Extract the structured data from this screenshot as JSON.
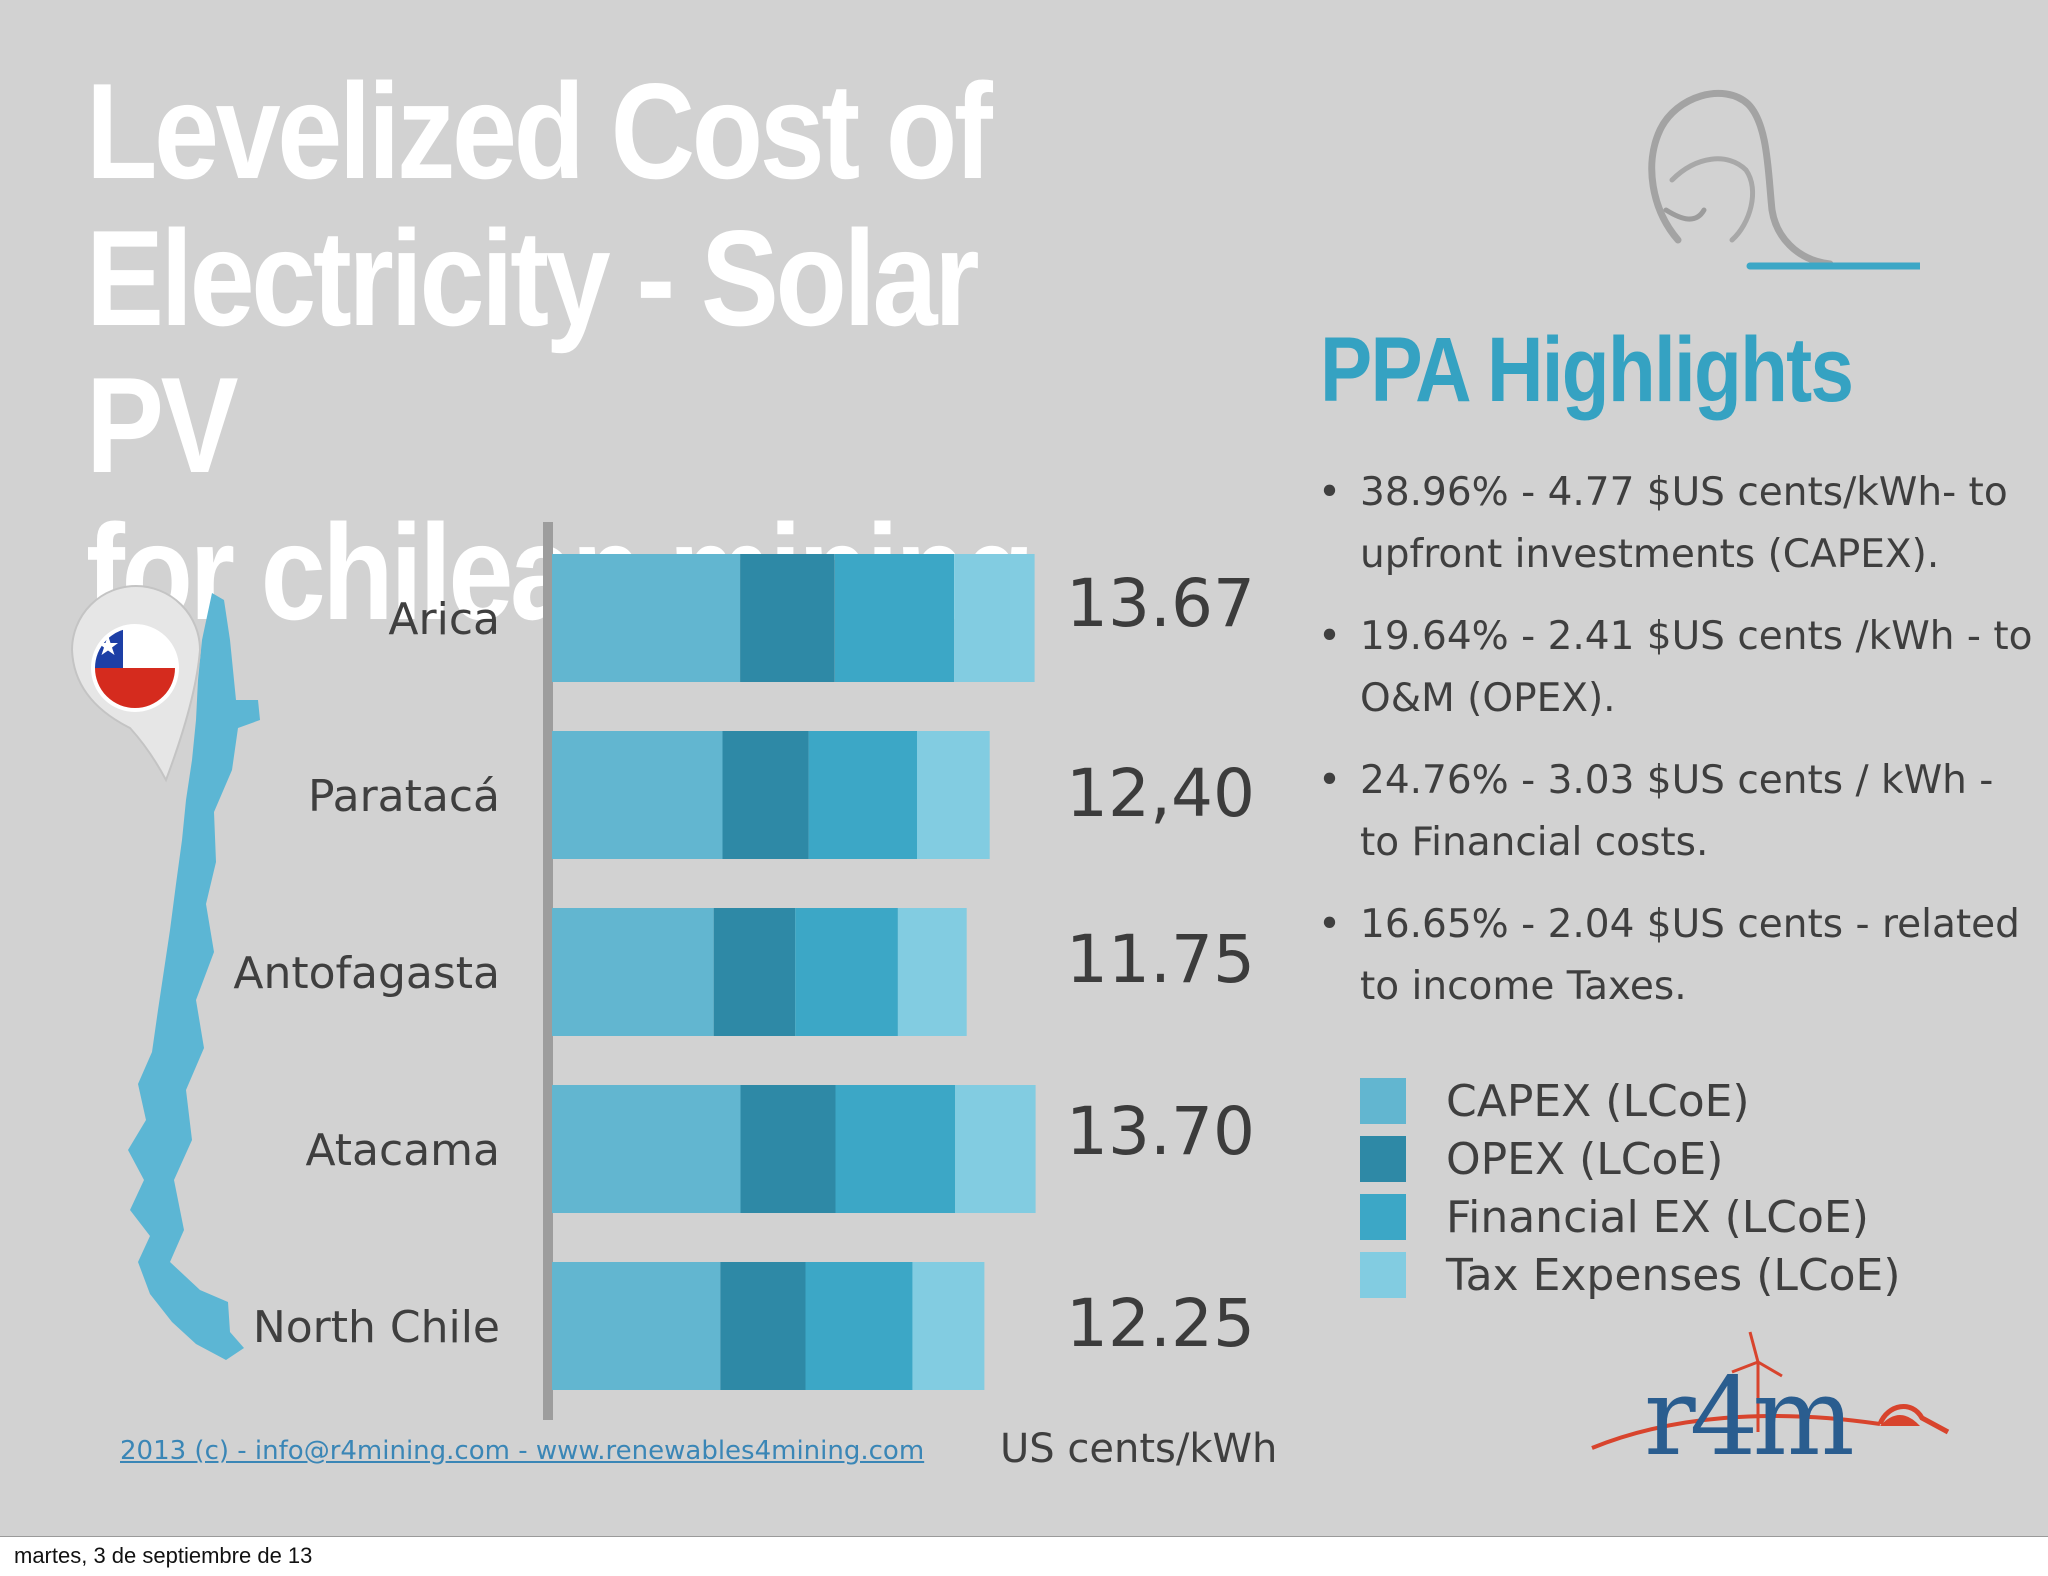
{
  "title_lines": [
    "Levelized Cost of",
    "Electricity - Solar PV",
    "for chilean mining"
  ],
  "ppa": {
    "title": "PPA Highlights",
    "bullet_symbol": "•",
    "items": [
      "38.96% - 4.77 $US cents/kWh- to upfront investments (CAPEX).",
      " 19.64% - 2.41 $US cents /kWh - to O&M (OPEX).",
      "24.76% - 3.03 $US cents / kWh - to Financial costs.",
      "16.65% - 2.04 $US cents - related to income Taxes."
    ]
  },
  "footer": {
    "link": "2013 (c) - info@r4mining.com - www.renewables4mining.com",
    "date": "martes, 3 de septiembre de 13"
  },
  "logo": {
    "text": "r4m",
    "colors": {
      "blue": "#2a5d8f",
      "red": "#d8442d"
    }
  },
  "flag_colors": {
    "blue": "#1d3fa6",
    "red": "#d52b1e",
    "white": "#ffffff"
  },
  "map_color": "#5cb6d4",
  "chart_data": {
    "type": "bar",
    "orientation": "horizontal",
    "stacked": true,
    "title": "",
    "xlabel": "US cents/kWh",
    "categories": [
      "Arica",
      "Paratacá",
      "Antofagasta",
      "Atacama",
      "North Chile"
    ],
    "totals": [
      "13.67",
      "12,40",
      "11.75",
      "13.70",
      "12.25"
    ],
    "series": [
      {
        "name": "CAPEX (LCoE)",
        "color": "#62b6d0",
        "values": [
          5.33,
          4.83,
          4.58,
          5.34,
          4.77
        ]
      },
      {
        "name": "OPEX (LCoE)",
        "color": "#2e89a6",
        "values": [
          2.68,
          2.44,
          2.31,
          2.69,
          2.41
        ]
      },
      {
        "name": "Financial EX (LCoE)",
        "color": "#3ca7c6",
        "values": [
          3.38,
          3.07,
          2.91,
          3.39,
          3.03
        ]
      },
      {
        "name": "Tax Expenses (LCoE)",
        "color": "#82cce1",
        "values": [
          2.28,
          2.06,
          1.95,
          2.28,
          2.04
        ]
      }
    ],
    "xlim": [
      0,
      16
    ]
  }
}
